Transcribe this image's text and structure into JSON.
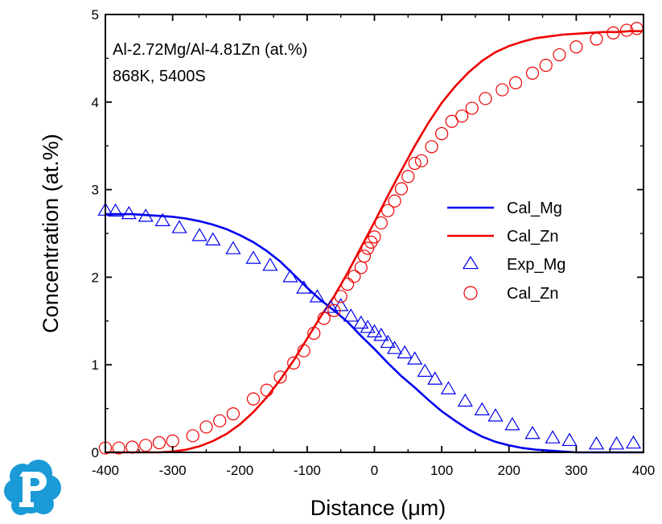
{
  "chart_data": {
    "type": "line",
    "xlabel": "Distance (μm)",
    "ylabel": "Concentration (at.%)",
    "xlim": [
      -400,
      400
    ],
    "ylim": [
      0,
      5
    ],
    "xticks": [
      -400,
      -300,
      -200,
      -100,
      0,
      100,
      200,
      300,
      400
    ],
    "yticks": [
      0,
      1,
      2,
      3,
      4,
      5
    ],
    "grid": false,
    "legend_position": "center-right",
    "annotations": [
      "Al-2.72Mg/Al-4.81Zn (at.%)",
      "868K, 5400S"
    ],
    "series": [
      {
        "name": "Cal_Mg",
        "style": "line",
        "color": "#0000ee",
        "x": [
          -400,
          -380,
          -360,
          -340,
          -320,
          -300,
          -280,
          -260,
          -240,
          -220,
          -200,
          -180,
          -160,
          -140,
          -120,
          -100,
          -80,
          -60,
          -40,
          -20,
          0,
          20,
          40,
          60,
          80,
          100,
          120,
          140,
          160,
          180,
          200,
          220,
          240,
          260,
          280,
          300,
          320,
          340,
          360,
          380,
          400
        ],
        "y": [
          2.72,
          2.72,
          2.72,
          2.71,
          2.7,
          2.69,
          2.67,
          2.64,
          2.6,
          2.55,
          2.48,
          2.4,
          2.3,
          2.18,
          2.03,
          1.88,
          1.74,
          1.62,
          1.49,
          1.33,
          1.18,
          1.02,
          0.87,
          0.74,
          0.6,
          0.47,
          0.36,
          0.26,
          0.18,
          0.12,
          0.08,
          0.05,
          0.03,
          0.02,
          0.01,
          0,
          0,
          0,
          0,
          0,
          0
        ]
      },
      {
        "name": "Cal_Zn",
        "style": "line",
        "color": "#ee0000",
        "x": [
          -400,
          -380,
          -360,
          -340,
          -320,
          -300,
          -280,
          -260,
          -240,
          -220,
          -200,
          -180,
          -160,
          -140,
          -120,
          -100,
          -80,
          -60,
          -40,
          -20,
          0,
          20,
          40,
          60,
          80,
          100,
          120,
          140,
          160,
          180,
          200,
          220,
          240,
          260,
          280,
          300,
          320,
          340,
          360,
          380,
          400
        ],
        "y": [
          0,
          0,
          0,
          0,
          0,
          0.01,
          0.03,
          0.07,
          0.13,
          0.21,
          0.32,
          0.46,
          0.63,
          0.83,
          1.05,
          1.3,
          1.55,
          1.78,
          2.05,
          2.34,
          2.63,
          2.93,
          3.22,
          3.5,
          3.76,
          3.99,
          4.18,
          4.34,
          4.47,
          4.57,
          4.64,
          4.69,
          4.73,
          4.75,
          4.77,
          4.78,
          4.79,
          4.8,
          4.8,
          4.81,
          4.81
        ]
      },
      {
        "name": "Exp_Mg",
        "style": "marker",
        "marker": "triangle",
        "color": "#0000ee",
        "x": [
          -400,
          -385,
          -365,
          -340,
          -315,
          -290,
          -260,
          -240,
          -210,
          -180,
          -155,
          -125,
          -105,
          -85,
          -65,
          -50,
          -35,
          -20,
          -10,
          0,
          10,
          20,
          30,
          45,
          60,
          75,
          90,
          110,
          135,
          160,
          180,
          205,
          235,
          265,
          290,
          330,
          360,
          385
        ],
        "y": [
          2.76,
          2.75,
          2.72,
          2.69,
          2.64,
          2.56,
          2.47,
          2.42,
          2.32,
          2.21,
          2.13,
          2,
          1.87,
          1.77,
          1.65,
          1.67,
          1.55,
          1.47,
          1.42,
          1.37,
          1.33,
          1.25,
          1.18,
          1.13,
          1.06,
          0.92,
          0.83,
          0.72,
          0.58,
          0.48,
          0.41,
          0.31,
          0.21,
          0.16,
          0.13,
          0.09,
          0.09,
          0.1
        ]
      },
      {
        "name": "Cal_Zn",
        "style": "marker",
        "marker": "circle",
        "color": "#ee0000",
        "x": [
          -400,
          -380,
          -360,
          -340,
          -320,
          -300,
          -270,
          -250,
          -230,
          -210,
          -180,
          -160,
          -140,
          -120,
          -105,
          -90,
          -75,
          -60,
          -50,
          -40,
          -30,
          -20,
          -15,
          -10,
          -5,
          0,
          10,
          20,
          30,
          40,
          50,
          60,
          70,
          85,
          100,
          115,
          130,
          145,
          165,
          190,
          210,
          235,
          255,
          275,
          300,
          330,
          355,
          375,
          390
        ],
        "y": [
          0.05,
          0.05,
          0.06,
          0.08,
          0.11,
          0.13,
          0.19,
          0.29,
          0.36,
          0.44,
          0.61,
          0.71,
          0.86,
          1.02,
          1.16,
          1.36,
          1.53,
          1.62,
          1.78,
          1.92,
          2.01,
          2.11,
          2.24,
          2.33,
          2.4,
          2.46,
          2.62,
          2.76,
          2.87,
          3.01,
          3.15,
          3.3,
          3.33,
          3.49,
          3.64,
          3.78,
          3.84,
          3.93,
          4.04,
          4.14,
          4.22,
          4.33,
          4.42,
          4.54,
          4.63,
          4.72,
          4.79,
          4.82,
          4.84
        ]
      }
    ]
  }
}
